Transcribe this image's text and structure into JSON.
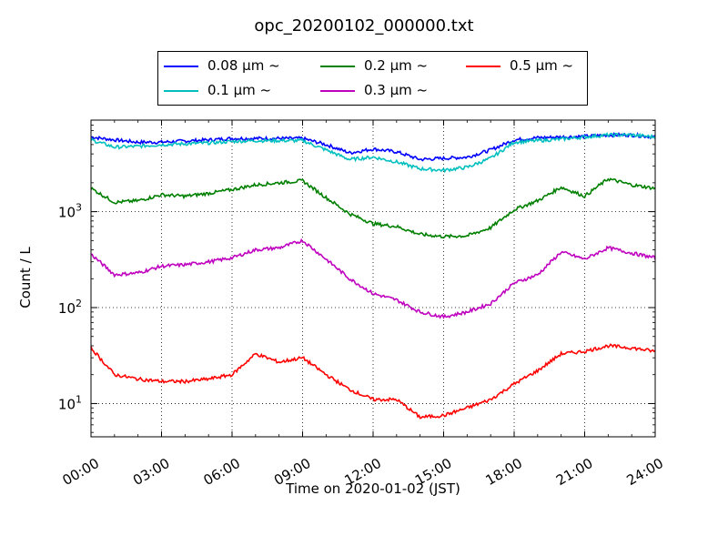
{
  "chart_data": {
    "type": "line",
    "title": "opc_20200102_000000.txt",
    "xlabel": "Time on 2020-01-02 (JST)",
    "ylabel": "Count / L",
    "y_scale": "log",
    "xlim": [
      "00:00",
      "24:00"
    ],
    "ylim": [
      4.5,
      9000
    ],
    "grid": true,
    "legend_position": "top-center",
    "x_tick_labels": [
      "00:00",
      "03:00",
      "06:00",
      "09:00",
      "12:00",
      "15:00",
      "18:00",
      "21:00",
      "24:00"
    ],
    "y_tick_labels": [
      "10",
      "10",
      "10"
    ],
    "y_tick_exponents": [
      "1",
      "2",
      "3"
    ],
    "x_hours": [
      0,
      1,
      2,
      3,
      4,
      5,
      6,
      7,
      8,
      9,
      10,
      11,
      12,
      13,
      14,
      15,
      16,
      17,
      18,
      19,
      20,
      21,
      22,
      23,
      24
    ],
    "series": [
      {
        "name": "0.08 μm ~",
        "color": "#0000ff",
        "values": [
          6000,
          5600,
          5300,
          5300,
          5450,
          5600,
          5800,
          5800,
          5800,
          5800,
          5000,
          4100,
          4500,
          4200,
          3500,
          3600,
          3700,
          4400,
          5600,
          5900,
          6000,
          6100,
          6300,
          6300,
          6000
        ]
      },
      {
        "name": "0.1 μm ~",
        "color": "#00bfbf",
        "values": [
          5600,
          4700,
          4800,
          5000,
          5100,
          5200,
          5400,
          5500,
          5500,
          5500,
          4400,
          3500,
          3700,
          3300,
          2800,
          2700,
          2900,
          3600,
          5300,
          5500,
          5700,
          6000,
          6300,
          6300,
          6000
        ]
      },
      {
        "name": "0.2 μm ~",
        "color": "#008000",
        "values": [
          1750,
          1250,
          1300,
          1500,
          1450,
          1550,
          1700,
          1900,
          2000,
          2100,
          1400,
          950,
          750,
          700,
          580,
          550,
          560,
          680,
          1050,
          1300,
          1800,
          1450,
          2200,
          1900,
          1750
        ]
      },
      {
        "name": "0.3 μm ~",
        "color": "#bf00bf",
        "values": [
          360,
          220,
          230,
          270,
          280,
          300,
          330,
          400,
          420,
          500,
          320,
          200,
          140,
          120,
          90,
          80,
          90,
          110,
          180,
          220,
          380,
          320,
          420,
          370,
          330
        ]
      },
      {
        "name": "0.5 μm ~",
        "color": "#ff0000",
        "values": [
          38,
          20,
          18,
          17,
          17,
          18,
          20,
          33,
          27,
          30,
          20,
          14,
          11,
          11,
          7.2,
          7.5,
          9,
          11,
          16,
          22,
          33,
          35,
          40,
          38,
          35
        ]
      }
    ]
  }
}
